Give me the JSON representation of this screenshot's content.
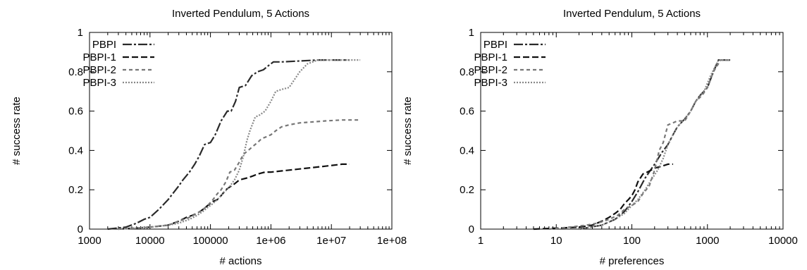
{
  "chart_data": [
    {
      "type": "line",
      "title": "Inverted Pendulum, 5 Actions",
      "xlabel": "# actions",
      "ylabel": "# success rate",
      "xscale": "log",
      "xlim": [
        1000,
        100000000
      ],
      "ylim": [
        0,
        1
      ],
      "xticks": [
        1000,
        10000,
        100000,
        1000000,
        10000000,
        100000000
      ],
      "xtick_labels": [
        "1000",
        "10000",
        "100000",
        "1e+06",
        "1e+07",
        "1e+08"
      ],
      "yticks": [
        0,
        0.2,
        0.4,
        0.6,
        0.8,
        1
      ],
      "ytick_labels": [
        "0",
        "0.2",
        "0.4",
        "0.6",
        "0.8",
        "1"
      ],
      "grid": false,
      "legend_position": "top-left",
      "series": [
        {
          "name": "PBPI",
          "dash": "dashdot",
          "color": "#2a2a2a",
          "x": [
            2000,
            4000,
            6000,
            8000,
            10000,
            14000,
            20000,
            30000,
            35000,
            45000,
            55000,
            65000,
            80000,
            100000,
            120000,
            150000,
            190000,
            220000,
            260000,
            300000,
            380000,
            480000,
            600000,
            750000,
            900000,
            1100000,
            1500000,
            3000000,
            6000000,
            10000000,
            20000000
          ],
          "y": [
            0.0,
            0.01,
            0.03,
            0.05,
            0.06,
            0.1,
            0.15,
            0.22,
            0.25,
            0.29,
            0.33,
            0.37,
            0.43,
            0.44,
            0.48,
            0.55,
            0.6,
            0.6,
            0.65,
            0.72,
            0.73,
            0.78,
            0.8,
            0.81,
            0.83,
            0.85,
            0.85,
            0.855,
            0.86,
            0.86,
            0.86
          ]
        },
        {
          "name": "PBPI-1",
          "dash": "dash",
          "color": "#111111",
          "x": [
            3000,
            10000,
            20000,
            30000,
            40000,
            50000,
            60000,
            75000,
            90000,
            110000,
            130000,
            150000,
            180000,
            200000,
            250000,
            300000,
            400000,
            500000,
            600000,
            800000,
            1000000,
            2000000,
            4000000,
            8000000,
            15000000,
            20000000
          ],
          "y": [
            0.0,
            0.01,
            0.02,
            0.04,
            0.06,
            0.07,
            0.08,
            0.1,
            0.12,
            0.14,
            0.15,
            0.17,
            0.2,
            0.21,
            0.23,
            0.25,
            0.26,
            0.27,
            0.28,
            0.29,
            0.29,
            0.3,
            0.31,
            0.32,
            0.33,
            0.33
          ]
        },
        {
          "name": "PBPI-2",
          "dash": "dash-short",
          "color": "#777777",
          "x": [
            3000,
            10000,
            20000,
            30000,
            45000,
            60000,
            75000,
            90000,
            110000,
            130000,
            150000,
            180000,
            210000,
            250000,
            300000,
            350000,
            420000,
            500000,
            600000,
            700000,
            850000,
            1000000,
            1200000,
            1500000,
            2000000,
            3000000,
            5000000,
            8000000,
            15000000,
            30000000
          ],
          "y": [
            0.0,
            0.01,
            0.02,
            0.04,
            0.06,
            0.08,
            0.1,
            0.12,
            0.15,
            0.18,
            0.2,
            0.24,
            0.29,
            0.3,
            0.34,
            0.38,
            0.4,
            0.42,
            0.44,
            0.46,
            0.47,
            0.48,
            0.5,
            0.52,
            0.53,
            0.54,
            0.545,
            0.55,
            0.555,
            0.555
          ]
        },
        {
          "name": "PBPI-3",
          "dash": "dot",
          "color": "#888888",
          "x": [
            3000,
            10000,
            20000,
            30000,
            45000,
            60000,
            75000,
            90000,
            110000,
            130000,
            160000,
            200000,
            250000,
            300000,
            350000,
            400000,
            450000,
            550000,
            650000,
            800000,
            1000000,
            1200000,
            1500000,
            2000000,
            3000000,
            4000000,
            6000000,
            10000000,
            20000000,
            30000000
          ],
          "y": [
            0.0,
            0.01,
            0.02,
            0.03,
            0.05,
            0.07,
            0.09,
            0.11,
            0.13,
            0.15,
            0.18,
            0.21,
            0.25,
            0.3,
            0.37,
            0.45,
            0.5,
            0.57,
            0.58,
            0.6,
            0.65,
            0.7,
            0.71,
            0.72,
            0.8,
            0.84,
            0.86,
            0.86,
            0.86,
            0.86
          ]
        }
      ]
    },
    {
      "type": "line",
      "title": "Inverted Pendulum, 5 Actions",
      "xlabel": "# preferences",
      "ylabel": "# success rate",
      "xscale": "log",
      "xlim": [
        1,
        10000
      ],
      "ylim": [
        0,
        1
      ],
      "xticks": [
        1,
        10,
        100,
        1000,
        10000
      ],
      "xtick_labels": [
        "1",
        "10",
        "100",
        "1000",
        "10000"
      ],
      "yticks": [
        0,
        0.2,
        0.4,
        0.6,
        0.8,
        1
      ],
      "ytick_labels": [
        "0",
        "0.2",
        "0.4",
        "0.6",
        "0.8",
        "1"
      ],
      "grid": false,
      "legend_position": "top-left",
      "series": [
        {
          "name": "PBPI",
          "dash": "dashdot",
          "color": "#2a2a2a",
          "x": [
            20,
            40,
            60,
            80,
            100,
            120,
            150,
            200,
            250,
            300,
            350,
            400,
            500,
            600,
            700,
            800,
            1000,
            1200,
            1400,
            1600,
            2000
          ],
          "y": [
            0.0,
            0.02,
            0.05,
            0.09,
            0.14,
            0.19,
            0.26,
            0.33,
            0.39,
            0.43,
            0.48,
            0.52,
            0.56,
            0.6,
            0.65,
            0.68,
            0.72,
            0.8,
            0.86,
            0.86,
            0.86
          ]
        },
        {
          "name": "PBPI-1",
          "dash": "dash",
          "color": "#111111",
          "x": [
            5,
            10,
            20,
            30,
            40,
            50,
            60,
            70,
            80,
            90,
            100,
            110,
            120,
            140,
            160,
            180,
            200,
            250,
            300,
            350
          ],
          "y": [
            0.0,
            0.005,
            0.01,
            0.02,
            0.04,
            0.06,
            0.08,
            0.1,
            0.13,
            0.15,
            0.17,
            0.2,
            0.24,
            0.28,
            0.29,
            0.3,
            0.31,
            0.32,
            0.33,
            0.33
          ]
        },
        {
          "name": "PBPI-2",
          "dash": "dash-short",
          "color": "#777777",
          "x": [
            8,
            15,
            25,
            35,
            50,
            65,
            80,
            100,
            120,
            140,
            170,
            200,
            230,
            260,
            300,
            350,
            400,
            500,
            600,
            700,
            850,
            1000,
            1200,
            1500,
            2000
          ],
          "y": [
            0.0,
            0.01,
            0.02,
            0.03,
            0.05,
            0.07,
            0.1,
            0.12,
            0.14,
            0.18,
            0.22,
            0.3,
            0.4,
            0.44,
            0.53,
            0.54,
            0.55,
            0.55,
            0.6,
            0.65,
            0.68,
            0.72,
            0.8,
            0.86,
            0.86
          ]
        },
        {
          "name": "PBPI-3",
          "dash": "dot",
          "color": "#888888",
          "x": [
            20,
            40,
            60,
            80,
            100,
            120,
            150,
            180,
            220,
            260,
            300,
            350,
            400,
            500,
            600,
            700,
            900,
            1100,
            1400,
            2000
          ],
          "y": [
            0.0,
            0.02,
            0.05,
            0.08,
            0.12,
            0.15,
            0.2,
            0.25,
            0.3,
            0.36,
            0.43,
            0.48,
            0.52,
            0.56,
            0.6,
            0.65,
            0.7,
            0.78,
            0.86,
            0.86
          ]
        }
      ]
    }
  ]
}
